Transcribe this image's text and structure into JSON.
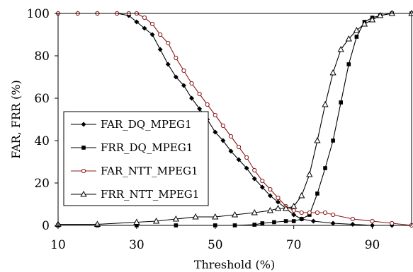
{
  "chart_data": {
    "type": "line",
    "title": "",
    "xlabel": "Threshold (%)",
    "ylabel": "FAR, FRR (%)",
    "xlim": [
      10,
      100
    ],
    "ylim": [
      0,
      100
    ],
    "xticks": [
      10,
      30,
      50,
      70,
      90
    ],
    "yticks": [
      0,
      20,
      40,
      60,
      80,
      100
    ],
    "grid": false,
    "legend_position": "left-middle",
    "series": [
      {
        "name": "FAR_DQ_MPEG1",
        "marker": "diamond-filled",
        "color": "#000000",
        "x": [
          10,
          15,
          20,
          25,
          28,
          30,
          32,
          34,
          36,
          38,
          40,
          42,
          44,
          46,
          48,
          50,
          52,
          54,
          56,
          58,
          60,
          62,
          64,
          66,
          68,
          70,
          72,
          75,
          80,
          85,
          90,
          95,
          100
        ],
        "y": [
          100,
          100,
          100,
          100,
          99,
          96,
          93,
          90,
          83,
          76,
          70,
          66,
          60,
          55,
          50,
          44,
          40,
          35,
          31,
          27,
          22,
          18,
          14,
          11,
          8,
          5,
          3,
          2,
          1,
          0.5,
          0,
          0,
          0
        ]
      },
      {
        "name": "FRR_DQ_MPEG1",
        "marker": "square-filled",
        "color": "#000000",
        "x": [
          10,
          20,
          30,
          40,
          50,
          55,
          60,
          62,
          65,
          68,
          70,
          72,
          74,
          76,
          78,
          80,
          82,
          84,
          86,
          88,
          90,
          92,
          95,
          100
        ],
        "y": [
          0,
          0,
          0,
          0,
          0,
          0,
          0.3,
          1,
          1.5,
          2,
          2,
          3,
          5,
          15,
          27,
          40,
          58,
          76,
          89,
          96,
          98,
          99,
          100,
          100
        ]
      },
      {
        "name": "FAR_NTT_MPEG1",
        "marker": "circle-open",
        "color": "#8b1a1a",
        "x": [
          10,
          15,
          20,
          25,
          28,
          30,
          32,
          34,
          36,
          38,
          40,
          42,
          44,
          46,
          48,
          50,
          52,
          54,
          56,
          58,
          60,
          62,
          64,
          66,
          68,
          70,
          72,
          74,
          76,
          78,
          80,
          85,
          90,
          95,
          100
        ],
        "y": [
          100,
          100,
          100,
          100,
          100,
          100,
          98,
          95,
          90,
          86,
          79,
          73,
          67,
          62,
          57,
          52,
          47,
          42,
          37,
          32,
          26,
          21,
          17,
          13,
          9,
          7,
          6,
          6,
          6,
          6,
          5,
          3,
          2,
          1,
          0
        ]
      },
      {
        "name": "FRR_NTT_MPEG1",
        "marker": "triangle-open",
        "color": "#000000",
        "x": [
          10,
          20,
          30,
          35,
          40,
          45,
          50,
          55,
          60,
          64,
          66,
          68,
          70,
          72,
          74,
          76,
          78,
          80,
          82,
          84,
          86,
          88,
          90,
          92,
          95,
          100
        ],
        "y": [
          0.5,
          0.5,
          1.5,
          2,
          3,
          4,
          4,
          5,
          6,
          7,
          8,
          8,
          9,
          14,
          24,
          40,
          57,
          72,
          83,
          88,
          92,
          95,
          97,
          99,
          100,
          100
        ]
      }
    ]
  }
}
